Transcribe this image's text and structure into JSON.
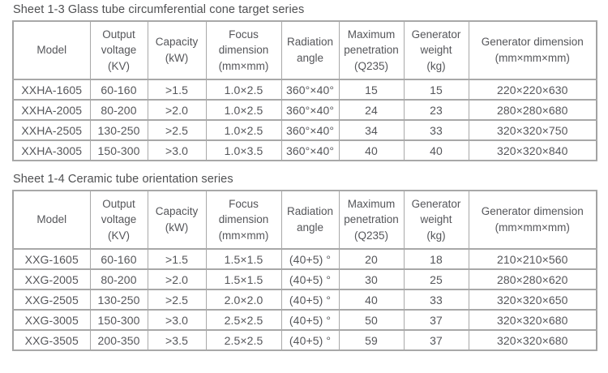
{
  "colors": {
    "text": "#55565a",
    "border": "#a8a8a8",
    "background": "#ffffff"
  },
  "tables": [
    {
      "title": "Sheet 1-3 Glass tube circumferential cone target series",
      "columns": [
        "Model",
        "Output\nvoltage\n(KV)",
        "Capacity\n(kW)",
        "Focus\ndimension\n(mm×mm)",
        "Radiation\nangle",
        "Maximum\npenetration\n(Q235)",
        "Generator\nweight\n(kg)",
        "Generator dimension\n(mm×mm×mm)"
      ],
      "rows": [
        [
          "XXHA-1605",
          "60-160",
          ">1.5",
          "1.0×2.5",
          "360°×40°",
          "15",
          "15",
          "220×220×630"
        ],
        [
          "XXHA-2005",
          "80-200",
          ">2.0",
          "1.0×2.5",
          "360°×40°",
          "24",
          "23",
          "280×280×680"
        ],
        [
          "XXHA-2505",
          "130-250",
          ">2.5",
          "1.0×2.5",
          "360°×40°",
          "34",
          "33",
          "320×320×750"
        ],
        [
          "XXHA-3005",
          "150-300",
          ">3.0",
          "1.0×3.5",
          "360°×40°",
          "40",
          "40",
          "320×320×840"
        ]
      ]
    },
    {
      "title": "Sheet 1-4 Ceramic tube orientation series",
      "columns": [
        "Model",
        "Output\nvoltage\n(KV)",
        "Capacity\n(kW)",
        "Focus\ndimension\n(mm×mm)",
        "Radiation\nangle",
        "Maximum\npenetration\n(Q235)",
        "Generator\nweight\n(kg)",
        "Generator dimension\n(mm×mm×mm)"
      ],
      "rows": [
        [
          "XXG-1605",
          "60-160",
          ">1.5",
          "1.5×1.5",
          "(40+5) °",
          "20",
          "18",
          "210×210×560"
        ],
        [
          "XXG-2005",
          "80-200",
          ">2.0",
          "1.5×1.5",
          "(40+5) °",
          "30",
          "25",
          "280×280×620"
        ],
        [
          "XXG-2505",
          "130-250",
          ">2.5",
          "2.0×2.0",
          "(40+5) °",
          "40",
          "33",
          "320×320×650"
        ],
        [
          "XXG-3005",
          "150-300",
          ">3.0",
          "2.5×2.5",
          "(40+5) °",
          "50",
          "37",
          "320×320×680"
        ],
        [
          "XXG-3505",
          "200-350",
          ">3.5",
          "2.5×2.5",
          "(40+5) °",
          "59",
          "37",
          "320×320×680"
        ]
      ]
    }
  ]
}
